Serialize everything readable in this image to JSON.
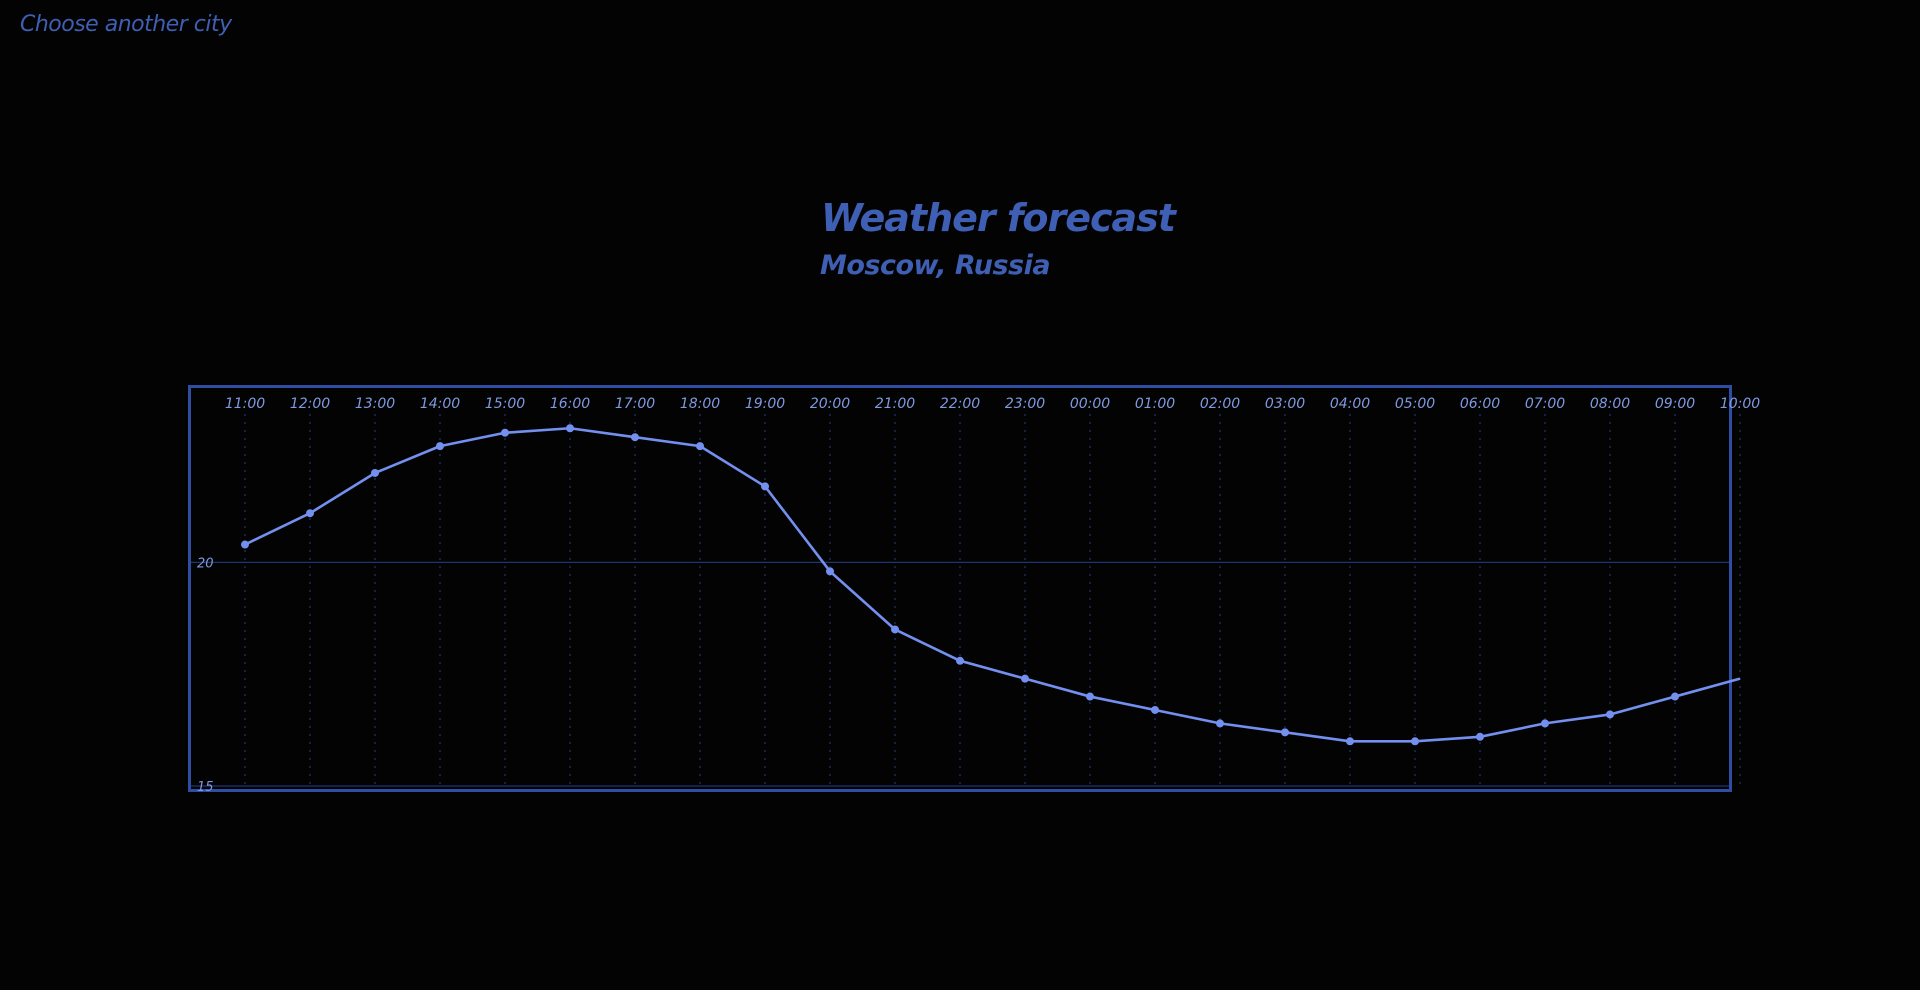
{
  "nav": {
    "back_label": "Choose another city"
  },
  "header": {
    "title": "Weather forecast",
    "subtitle": "Moscow, Russia"
  },
  "colors": {
    "background": "#030303",
    "accent": "#3f5fb4",
    "line": "#7390f0",
    "frame": "#2f4ea3",
    "gridline": "#1f3570",
    "label": "#7f99df"
  },
  "chart_data": {
    "type": "line",
    "x": [
      "11:00",
      "12:00",
      "13:00",
      "14:00",
      "15:00",
      "16:00",
      "17:00",
      "18:00",
      "19:00",
      "20:00",
      "21:00",
      "22:00",
      "23:00",
      "00:00",
      "01:00",
      "02:00",
      "03:00",
      "04:00",
      "05:00",
      "06:00",
      "07:00",
      "08:00",
      "09:00",
      "10:00"
    ],
    "series": [
      {
        "values": [
          20.4,
          21.1,
          22.0,
          22.6,
          22.9,
          23.0,
          22.8,
          22.6,
          21.7,
          19.8,
          18.5,
          17.8,
          17.4,
          17.0,
          16.7,
          16.4,
          16.2,
          16.0,
          16.0,
          16.1,
          16.4,
          16.6,
          17.0,
          17.4
        ]
      }
    ],
    "y_ticks": [
      15,
      20
    ],
    "ylim": [
      15,
      23.9
    ],
    "x_grid": true,
    "y_grid": true,
    "legend": "none"
  }
}
